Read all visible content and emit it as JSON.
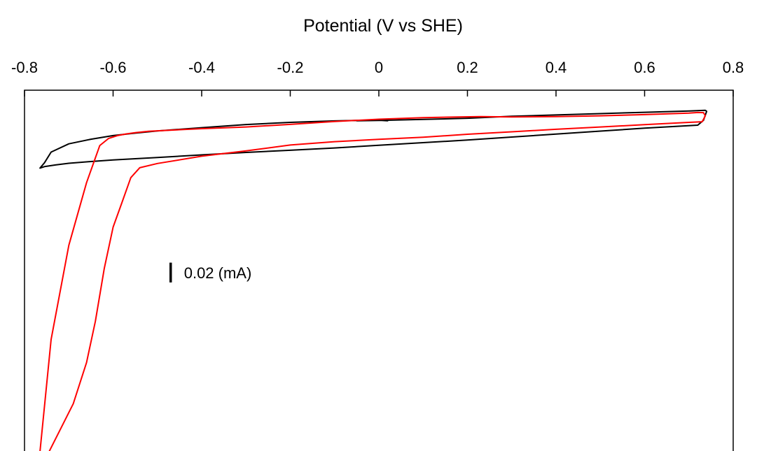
{
  "chart_data": {
    "type": "line",
    "title": "",
    "xlabel": "Potential (V vs SHE)",
    "ylabel": "",
    "x_axis_position": "top",
    "xlim": [
      -0.8,
      0.8
    ],
    "x_ticks": [
      -0.8,
      -0.6,
      -0.4,
      -0.2,
      0,
      0.2,
      0.4,
      0.6,
      0.8
    ],
    "x_tick_labels": [
      "-0.8",
      "-0.6",
      "-0.4",
      "-0.2",
      "0",
      "0.2",
      "0.4",
      "0.6",
      "0.8"
    ],
    "ylim": [
      -0.205,
      0.02
    ],
    "y_tick_labels_shown": false,
    "grid": false,
    "legend": "none",
    "scale_bar": {
      "label": "0.02 (mA)",
      "value": 0.02,
      "x": -0.47,
      "y_start": -0.0965,
      "y_end": -0.0845,
      "color": "#000000"
    },
    "series": [
      {
        "color": "#000000",
        "x": [
          -0.05,
          0.0,
          0.1,
          0.2,
          0.3,
          0.4,
          0.5,
          0.6,
          0.7,
          0.737,
          0.74,
          0.733,
          0.72,
          0.6,
          0.5,
          0.4,
          0.3,
          0.2,
          0.1,
          0.0,
          -0.1,
          -0.2,
          -0.3,
          -0.4,
          -0.5,
          -0.6,
          -0.65,
          -0.7,
          -0.73,
          -0.755,
          -0.765,
          -0.755,
          -0.74,
          -0.7,
          -0.65,
          -0.6,
          -0.55,
          -0.5,
          -0.4,
          -0.3,
          -0.2,
          -0.1,
          -0.05,
          0.0,
          0.02
        ],
        "y": [
          0.0015,
          0.0017,
          0.0023,
          0.003,
          0.0042,
          0.005,
          0.0058,
          0.0066,
          0.0074,
          0.0078,
          0.0072,
          0.0018,
          -0.0012,
          -0.003,
          -0.0048,
          -0.0066,
          -0.0084,
          -0.0102,
          -0.0118,
          -0.0134,
          -0.015,
          -0.0164,
          -0.0177,
          -0.0192,
          -0.0208,
          -0.0223,
          -0.0232,
          -0.0243,
          -0.0253,
          -0.0263,
          -0.0272,
          -0.024,
          -0.0175,
          -0.0125,
          -0.0097,
          -0.0075,
          -0.006,
          -0.0047,
          -0.0027,
          -0.0008,
          0.0005,
          0.0014,
          0.0017,
          0.0018,
          0.0015
        ]
      },
      {
        "color": "#ff0000",
        "x": [
          -0.75,
          -0.72,
          -0.69,
          -0.66,
          -0.64,
          -0.62,
          -0.6,
          -0.58,
          -0.56,
          -0.54,
          -0.5,
          -0.4,
          -0.3,
          -0.2,
          -0.1,
          0.0,
          0.1,
          0.2,
          0.3,
          0.4,
          0.5,
          0.6,
          0.7,
          0.73,
          0.737,
          0.733,
          0.72,
          0.7,
          0.6,
          0.5,
          0.4,
          0.3,
          0.23,
          0.1,
          0.0,
          -0.1,
          -0.2,
          -0.3,
          -0.4,
          -0.5,
          -0.52,
          -0.55,
          -0.57,
          -0.59,
          -0.61,
          -0.63,
          -0.66,
          -0.7,
          -0.74,
          -0.765,
          -0.755
        ],
        "y": [
          -0.202,
          -0.186,
          -0.17,
          -0.145,
          -0.12,
          -0.088,
          -0.063,
          -0.048,
          -0.033,
          -0.027,
          -0.0244,
          -0.02,
          -0.0168,
          -0.0132,
          -0.0112,
          -0.0098,
          -0.0085,
          -0.0067,
          -0.0052,
          -0.0037,
          -0.0023,
          -0.0009,
          0.0005,
          0.0009,
          0.0045,
          0.0064,
          0.0065,
          0.0061,
          0.0052,
          0.0045,
          0.004,
          0.0038,
          0.004,
          0.0034,
          0.0024,
          0.001,
          -0.0007,
          -0.0023,
          -0.0033,
          -0.0046,
          -0.0049,
          -0.0057,
          -0.0065,
          -0.0075,
          -0.0092,
          -0.0135,
          -0.036,
          -0.074,
          -0.131,
          -0.199,
          -0.202
        ]
      }
    ]
  }
}
